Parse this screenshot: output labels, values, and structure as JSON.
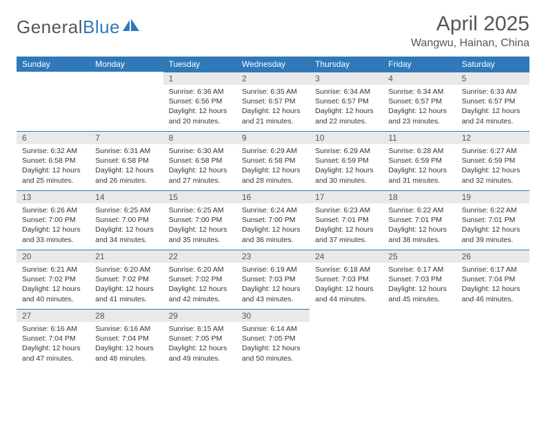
{
  "brand": {
    "name1": "General",
    "name2": "Blue"
  },
  "title": {
    "month": "April 2025",
    "location": "Wangwu, Hainan, China"
  },
  "colors": {
    "accent": "#2f79b9",
    "header_bg": "#e9e9e9",
    "text": "#333333"
  },
  "days_of_week": [
    "Sunday",
    "Monday",
    "Tuesday",
    "Wednesday",
    "Thursday",
    "Friday",
    "Saturday"
  ],
  "grid": [
    [
      {
        "empty": true
      },
      {
        "empty": true
      },
      {
        "n": "1",
        "sr": "Sunrise: 6:36 AM",
        "ss": "Sunset: 6:56 PM",
        "dl": "Daylight: 12 hours and 20 minutes."
      },
      {
        "n": "2",
        "sr": "Sunrise: 6:35 AM",
        "ss": "Sunset: 6:57 PM",
        "dl": "Daylight: 12 hours and 21 minutes."
      },
      {
        "n": "3",
        "sr": "Sunrise: 6:34 AM",
        "ss": "Sunset: 6:57 PM",
        "dl": "Daylight: 12 hours and 22 minutes."
      },
      {
        "n": "4",
        "sr": "Sunrise: 6:34 AM",
        "ss": "Sunset: 6:57 PM",
        "dl": "Daylight: 12 hours and 23 minutes."
      },
      {
        "n": "5",
        "sr": "Sunrise: 6:33 AM",
        "ss": "Sunset: 6:57 PM",
        "dl": "Daylight: 12 hours and 24 minutes."
      }
    ],
    [
      {
        "n": "6",
        "sr": "Sunrise: 6:32 AM",
        "ss": "Sunset: 6:58 PM",
        "dl": "Daylight: 12 hours and 25 minutes."
      },
      {
        "n": "7",
        "sr": "Sunrise: 6:31 AM",
        "ss": "Sunset: 6:58 PM",
        "dl": "Daylight: 12 hours and 26 minutes."
      },
      {
        "n": "8",
        "sr": "Sunrise: 6:30 AM",
        "ss": "Sunset: 6:58 PM",
        "dl": "Daylight: 12 hours and 27 minutes."
      },
      {
        "n": "9",
        "sr": "Sunrise: 6:29 AM",
        "ss": "Sunset: 6:58 PM",
        "dl": "Daylight: 12 hours and 28 minutes."
      },
      {
        "n": "10",
        "sr": "Sunrise: 6:29 AM",
        "ss": "Sunset: 6:59 PM",
        "dl": "Daylight: 12 hours and 30 minutes."
      },
      {
        "n": "11",
        "sr": "Sunrise: 6:28 AM",
        "ss": "Sunset: 6:59 PM",
        "dl": "Daylight: 12 hours and 31 minutes."
      },
      {
        "n": "12",
        "sr": "Sunrise: 6:27 AM",
        "ss": "Sunset: 6:59 PM",
        "dl": "Daylight: 12 hours and 32 minutes."
      }
    ],
    [
      {
        "n": "13",
        "sr": "Sunrise: 6:26 AM",
        "ss": "Sunset: 7:00 PM",
        "dl": "Daylight: 12 hours and 33 minutes."
      },
      {
        "n": "14",
        "sr": "Sunrise: 6:25 AM",
        "ss": "Sunset: 7:00 PM",
        "dl": "Daylight: 12 hours and 34 minutes."
      },
      {
        "n": "15",
        "sr": "Sunrise: 6:25 AM",
        "ss": "Sunset: 7:00 PM",
        "dl": "Daylight: 12 hours and 35 minutes."
      },
      {
        "n": "16",
        "sr": "Sunrise: 6:24 AM",
        "ss": "Sunset: 7:00 PM",
        "dl": "Daylight: 12 hours and 36 minutes."
      },
      {
        "n": "17",
        "sr": "Sunrise: 6:23 AM",
        "ss": "Sunset: 7:01 PM",
        "dl": "Daylight: 12 hours and 37 minutes."
      },
      {
        "n": "18",
        "sr": "Sunrise: 6:22 AM",
        "ss": "Sunset: 7:01 PM",
        "dl": "Daylight: 12 hours and 38 minutes."
      },
      {
        "n": "19",
        "sr": "Sunrise: 6:22 AM",
        "ss": "Sunset: 7:01 PM",
        "dl": "Daylight: 12 hours and 39 minutes."
      }
    ],
    [
      {
        "n": "20",
        "sr": "Sunrise: 6:21 AM",
        "ss": "Sunset: 7:02 PM",
        "dl": "Daylight: 12 hours and 40 minutes."
      },
      {
        "n": "21",
        "sr": "Sunrise: 6:20 AM",
        "ss": "Sunset: 7:02 PM",
        "dl": "Daylight: 12 hours and 41 minutes."
      },
      {
        "n": "22",
        "sr": "Sunrise: 6:20 AM",
        "ss": "Sunset: 7:02 PM",
        "dl": "Daylight: 12 hours and 42 minutes."
      },
      {
        "n": "23",
        "sr": "Sunrise: 6:19 AM",
        "ss": "Sunset: 7:03 PM",
        "dl": "Daylight: 12 hours and 43 minutes."
      },
      {
        "n": "24",
        "sr": "Sunrise: 6:18 AM",
        "ss": "Sunset: 7:03 PM",
        "dl": "Daylight: 12 hours and 44 minutes."
      },
      {
        "n": "25",
        "sr": "Sunrise: 6:17 AM",
        "ss": "Sunset: 7:03 PM",
        "dl": "Daylight: 12 hours and 45 minutes."
      },
      {
        "n": "26",
        "sr": "Sunrise: 6:17 AM",
        "ss": "Sunset: 7:04 PM",
        "dl": "Daylight: 12 hours and 46 minutes."
      }
    ],
    [
      {
        "n": "27",
        "sr": "Sunrise: 6:16 AM",
        "ss": "Sunset: 7:04 PM",
        "dl": "Daylight: 12 hours and 47 minutes."
      },
      {
        "n": "28",
        "sr": "Sunrise: 6:16 AM",
        "ss": "Sunset: 7:04 PM",
        "dl": "Daylight: 12 hours and 48 minutes."
      },
      {
        "n": "29",
        "sr": "Sunrise: 6:15 AM",
        "ss": "Sunset: 7:05 PM",
        "dl": "Daylight: 12 hours and 49 minutes."
      },
      {
        "n": "30",
        "sr": "Sunrise: 6:14 AM",
        "ss": "Sunset: 7:05 PM",
        "dl": "Daylight: 12 hours and 50 minutes."
      },
      {
        "empty": true
      },
      {
        "empty": true
      },
      {
        "empty": true
      }
    ]
  ]
}
